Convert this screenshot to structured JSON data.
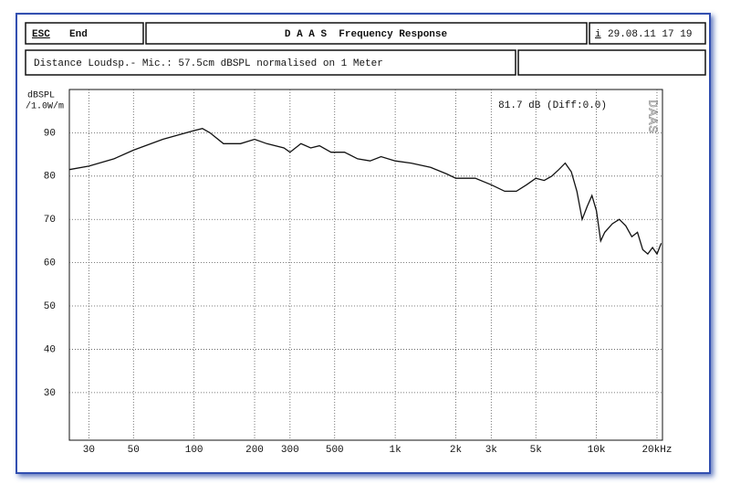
{
  "header": {
    "esc": "ESC",
    "end": "End",
    "title": "D A A S  Frequency Response",
    "info_key": "i",
    "datetime": "29.08.11 17 19",
    "info": "Distance Loudsp.- Mic.: 57.5cm dBSPL normalised on 1 Meter"
  },
  "chart_data": {
    "type": "line",
    "color": "#111111",
    "ylabel": [
      "dBSPL",
      "/1.0W/m"
    ],
    "annotation": "81.7 dB (Diff:0.0)",
    "watermark": "DAAS",
    "log_x": true,
    "grid": true,
    "xlim": [
      24,
      21300
    ],
    "ylim": [
      19,
      100
    ],
    "xticks": [
      30,
      50,
      100,
      200,
      300,
      500,
      {
        "value": 1000,
        "label": "1k"
      },
      {
        "value": 2000,
        "label": "2k"
      },
      {
        "value": 3000,
        "label": "3k"
      },
      {
        "value": 5000,
        "label": "5k"
      },
      {
        "value": 10000,
        "label": "10k"
      },
      {
        "value": 20000,
        "label": "20kHz"
      }
    ],
    "yticks": [
      30,
      40,
      50,
      60,
      70,
      80,
      90
    ],
    "x": [
      24,
      30,
      40,
      50,
      70,
      100,
      110,
      120,
      140,
      170,
      200,
      230,
      280,
      300,
      340,
      380,
      420,
      480,
      560,
      650,
      750,
      850,
      1000,
      1200,
      1500,
      1800,
      2000,
      2500,
      3000,
      3500,
      4000,
      4500,
      5000,
      5500,
      6000,
      6500,
      7000,
      7500,
      8000,
      8500,
      9000,
      9500,
      10000,
      10500,
      11000,
      12000,
      13000,
      14000,
      15000,
      16000,
      17000,
      18000,
      19000,
      20000,
      21000
    ],
    "values": [
      81.5,
      82.3,
      84,
      86,
      88.5,
      90.5,
      91,
      90,
      87.5,
      87.5,
      88.5,
      87.5,
      86.5,
      85.5,
      87.5,
      86.5,
      87,
      85.5,
      85.5,
      84,
      83.5,
      84.5,
      83.5,
      83,
      82,
      80.5,
      79.5,
      79.5,
      78,
      76.5,
      76.5,
      78,
      79.5,
      79,
      80,
      81.5,
      83,
      81,
      76.5,
      70,
      73,
      75.5,
      72,
      65,
      67,
      69,
      70,
      68.5,
      66,
      67,
      63,
      62,
      63.5,
      62,
      64.5
    ]
  }
}
